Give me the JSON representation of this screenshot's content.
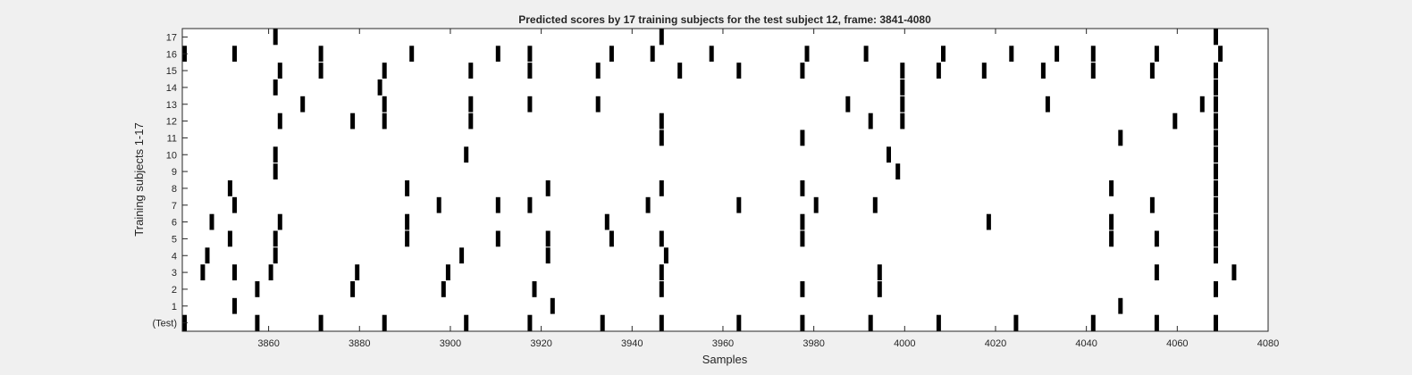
{
  "chart_data": {
    "type": "heatmap",
    "title": "Predicted scores by 17 training subjects for the test subject 12, frame: 3841-4080",
    "xlabel": "Samples",
    "ylabel": "Training subjects 1-17",
    "xlim": [
      3841,
      4080
    ],
    "x_ticks": [
      3860,
      3880,
      3900,
      3920,
      3940,
      3960,
      3980,
      4000,
      4020,
      4040,
      4060,
      4080
    ],
    "rows": [
      "(Test)",
      "1",
      "2",
      "3",
      "4",
      "5",
      "6",
      "7",
      "8",
      "9",
      "10",
      "11",
      "12",
      "13",
      "14",
      "15",
      "16",
      "17"
    ],
    "colors": {
      "background": "#f0f0f0",
      "plot": "#ffffff",
      "mark": "#000000",
      "axis": "#262626"
    },
    "events": [
      [
        3841,
        3857,
        3871,
        3885,
        3903,
        3917,
        3933,
        3946,
        3963,
        3977,
        3992,
        4007,
        4024,
        4041,
        4055,
        4068
      ],
      [
        3852,
        3922,
        4047
      ],
      [
        3857,
        3878,
        3898,
        3918,
        3946,
        3977,
        3994,
        4068
      ],
      [
        3845,
        3852,
        3860,
        3879,
        3899,
        3946,
        3994,
        4055,
        4072
      ],
      [
        3846,
        3861,
        3902,
        3921,
        3947,
        4068
      ],
      [
        3851,
        3861,
        3890,
        3910,
        3921,
        3935,
        3946,
        3977,
        4045,
        4055,
        4068
      ],
      [
        3847,
        3862,
        3890,
        3934,
        3977,
        4018,
        4045,
        4068
      ],
      [
        3852,
        3897,
        3910,
        3917,
        3943,
        3963,
        3980,
        3993,
        4054,
        4068
      ],
      [
        3851,
        3890,
        3921,
        3946,
        3977,
        4045,
        4068
      ],
      [
        3861,
        3998,
        4068
      ],
      [
        3861,
        3903,
        3996,
        4068
      ],
      [
        3946,
        3977,
        4047,
        4068
      ],
      [
        3862,
        3878,
        3885,
        3904,
        3946,
        3992,
        3999,
        4059,
        4068
      ],
      [
        3867,
        3885,
        3904,
        3917,
        3932,
        3987,
        3999,
        4031,
        4065,
        4068
      ],
      [
        3861,
        3884,
        3999,
        4068
      ],
      [
        3862,
        3871,
        3885,
        3904,
        3917,
        3932,
        3950,
        3963,
        3977,
        3999,
        4007,
        4017,
        4030,
        4041,
        4054,
        4068
      ],
      [
        3841,
        3852,
        3871,
        3891,
        3910,
        3917,
        3935,
        3944,
        3957,
        3978,
        3991,
        4008,
        4023,
        4033,
        4041,
        4055,
        4069
      ],
      [
        3861,
        3946,
        4068
      ]
    ]
  }
}
